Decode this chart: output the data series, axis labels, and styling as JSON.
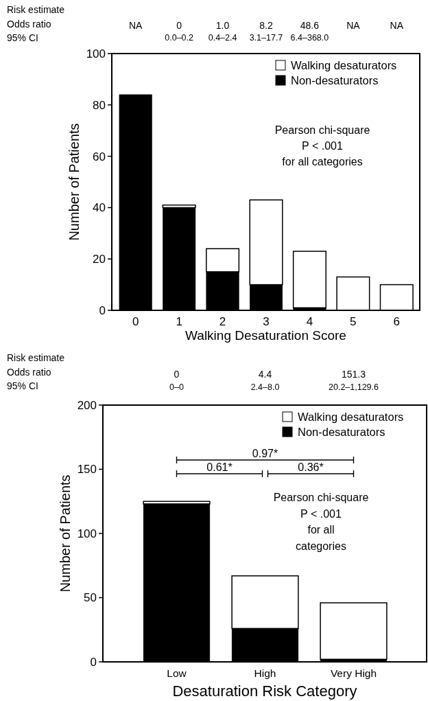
{
  "chart_data": [
    {
      "type": "bar",
      "stacked": true,
      "categories": [
        "0",
        "1",
        "2",
        "3",
        "4",
        "5",
        "6"
      ],
      "xlabel": "Walking Desaturation Score",
      "ylabel": "Number of Patients",
      "ylim": [
        0,
        100
      ],
      "yticks": [
        0,
        20,
        40,
        60,
        80,
        100
      ],
      "legend": "top right",
      "grid": false,
      "series": [
        {
          "name": "Non-desaturators",
          "color": "#000000",
          "values": [
            84,
            40,
            15,
            10,
            1,
            0,
            0
          ]
        },
        {
          "name": "Walking desaturators",
          "color": "#ffffff",
          "values": [
            0,
            1,
            9,
            33,
            22,
            13,
            10
          ]
        }
      ],
      "annotations": [
        "Risk estimate",
        "Odds ratio",
        "95% CI",
        "NA",
        "0",
        "1.0",
        "8.2",
        "48.6",
        "NA",
        "NA",
        "0.0–0.2",
        "0.4–2.4",
        "3.1–17.7",
        "6.4–368.0",
        "Pearson chi-square",
        "P < .001",
        "for all categories"
      ]
    },
    {
      "type": "bar",
      "stacked": true,
      "categories": [
        "Low",
        "High",
        "Very High"
      ],
      "xlabel": "Desaturation Risk Category",
      "ylabel": "Number of Patients",
      "ylim": [
        0,
        200
      ],
      "yticks": [
        0,
        50,
        100,
        150,
        200
      ],
      "legend": "top right",
      "grid": false,
      "series": [
        {
          "name": "Non-desaturators",
          "color": "#000000",
          "values": [
            123,
            26,
            2
          ]
        },
        {
          "name": "Walking desaturators",
          "color": "#ffffff",
          "values": [
            2,
            41,
            44
          ]
        }
      ],
      "annotations": [
        "Risk estimate",
        "Odds ratio",
        "95% CI",
        "0",
        "4.4",
        "151.3",
        "0–0",
        "2.4–8.0",
        "20.2–1,129.6",
        "0.97*",
        "0.61*",
        "0.36*",
        "Pearson chi-square",
        "P < .001",
        "for all",
        "categories"
      ]
    }
  ]
}
